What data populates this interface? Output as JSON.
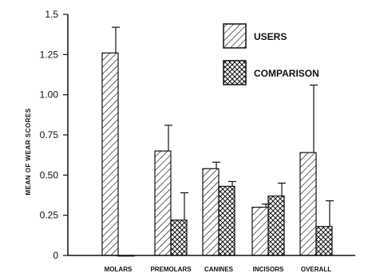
{
  "chart_data": {
    "type": "bar",
    "title": "",
    "xlabel": "",
    "ylabel": "MEAN OF WEAR SCORES",
    "ylim": [
      0,
      1.5
    ],
    "yticks": [
      "0",
      "0.25",
      "0.50",
      "0.75",
      "1.00",
      "1.25",
      "1.5"
    ],
    "ytick_values": [
      0,
      0.25,
      0.5,
      0.75,
      1.0,
      1.25,
      1.5
    ],
    "categories": [
      "MOLARS",
      "PREMOLARS",
      "CANINES",
      "INCISORS",
      "OVERALL"
    ],
    "series": [
      {
        "name": "USERS",
        "pattern": "diagonal-hatch",
        "values": [
          1.26,
          0.65,
          0.54,
          0.3,
          0.64
        ],
        "error_upper": [
          1.42,
          0.81,
          0.58,
          0.32,
          1.06
        ]
      },
      {
        "name": "COMPARISON",
        "pattern": "cross-hatch",
        "values": [
          0.0,
          0.22,
          0.43,
          0.37,
          0.18
        ],
        "error_upper": [
          0.0,
          0.39,
          0.46,
          0.45,
          0.34
        ]
      }
    ],
    "legend_position": "top-right",
    "grid": false,
    "bar_color": "#111111",
    "background": "#ffffff"
  }
}
